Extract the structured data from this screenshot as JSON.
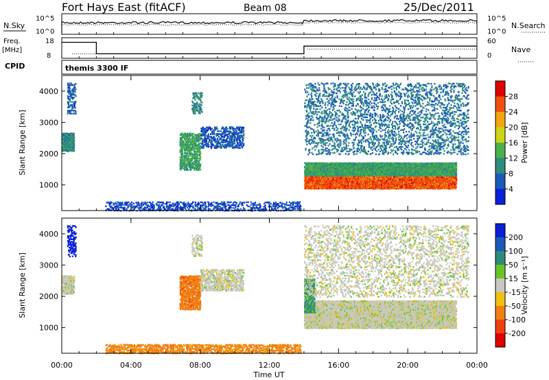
{
  "header": {
    "radar": "Fort Hays East (fitACF)",
    "beam": "Beam 08",
    "date": "25/Dec/2011"
  },
  "top_panels": {
    "nsky_label": "N.Sky",
    "nsky_ticks": [
      "10^5",
      "10^0"
    ],
    "nsearch_label": "N.Search",
    "nsearch_ticks": [
      "10^5",
      "10^0"
    ],
    "freq_label": "Freq.",
    "freq_unit": "[MHz]",
    "freq_ticks": [
      "18",
      "8"
    ],
    "nave_label": "Nave",
    "nave_ticks": [
      "60",
      "0"
    ],
    "cpid_label": "CPID",
    "cpid_value": "themis 3300 IF"
  },
  "chart_data": [
    {
      "type": "heatmap",
      "name": "Power",
      "ylabel": "Slant Range [km]",
      "yticks": [
        1000,
        2000,
        3000,
        4000
      ],
      "ylim": [
        180,
        4500
      ],
      "colorbar_label": "Power [dB]",
      "colorbar_ticks": [
        "4",
        "8",
        "12",
        "16",
        "20",
        "24",
        "28"
      ],
      "colorbar_colors": [
        "#0a1fd6",
        "#1a5ab8",
        "#2d8c7a",
        "#4bb04a",
        "#cbd418",
        "#f0a60c",
        "#f05010",
        "#e00000"
      ],
      "colorbar_range": [
        0,
        32
      ],
      "blobs": [
        {
          "x": [
            0.0,
            0.7
          ],
          "y": [
            2100,
            2700
          ],
          "power": 10,
          "density": 0.9
        },
        {
          "x": [
            0.3,
            0.8
          ],
          "y": [
            3300,
            4300
          ],
          "power": 6,
          "density": 0.4
        },
        {
          "x": [
            6.8,
            8.0
          ],
          "y": [
            1500,
            2700
          ],
          "power": 12,
          "density": 0.6
        },
        {
          "x": [
            8.0,
            10.5
          ],
          "y": [
            2200,
            2900
          ],
          "power": 6,
          "density": 0.45
        },
        {
          "x": [
            7.5,
            8.1
          ],
          "y": [
            3300,
            4000
          ],
          "power": 10,
          "density": 0.4
        },
        {
          "x": [
            14.0,
            22.8
          ],
          "y": [
            1300,
            1750
          ],
          "power": 12,
          "density": 0.95
        },
        {
          "x": [
            14.0,
            22.8
          ],
          "y": [
            900,
            1300
          ],
          "power": 26,
          "density": 0.95
        },
        {
          "x": [
            14.0,
            23.5
          ],
          "y": [
            2000,
            4300
          ],
          "power": 8,
          "density": 0.22
        },
        {
          "x": [
            2.5,
            13.8
          ],
          "y": [
            200,
            500
          ],
          "power": 5,
          "density": 0.35
        }
      ]
    },
    {
      "type": "heatmap",
      "name": "Velocity",
      "ylabel": "Slant Range [km]",
      "xlabel": "Time UT",
      "xticks": [
        "00:00",
        "04:00",
        "08:00",
        "12:00",
        "16:00",
        "20:00",
        "00:00"
      ],
      "xrange_hours": [
        0,
        24
      ],
      "yticks": [
        1000,
        2000,
        3000,
        4000
      ],
      "ylim": [
        180,
        4500
      ],
      "colorbar_label": "Velocity [m s⁻¹]",
      "colorbar_ticks": [
        "200",
        "100",
        "50",
        "15",
        "-15",
        "-50",
        "-100",
        "-200"
      ],
      "colorbar_colors": [
        "#0a1fd6",
        "#1a5ab8",
        "#2d8c7a",
        "#68c428",
        "#c8c8c0",
        "#f0c010",
        "#f08010",
        "#f04010",
        "#e00000"
      ],
      "blobs": [
        {
          "x": [
            0.0,
            0.7
          ],
          "y": [
            2100,
            2700
          ],
          "vel": 0,
          "density": 0.85
        },
        {
          "x": [
            0.3,
            0.8
          ],
          "y": [
            3300,
            4300
          ],
          "vel": 220,
          "density": 0.4
        },
        {
          "x": [
            6.8,
            8.0
          ],
          "y": [
            1600,
            2700
          ],
          "vel": -60,
          "density": 0.7
        },
        {
          "x": [
            8.0,
            10.5
          ],
          "y": [
            2200,
            2900
          ],
          "vel": 0,
          "density": 0.55
        },
        {
          "x": [
            7.5,
            8.1
          ],
          "y": [
            3300,
            4000
          ],
          "vel": 0,
          "density": 0.4
        },
        {
          "x": [
            14.0,
            22.8
          ],
          "y": [
            1000,
            1900
          ],
          "vel": 0,
          "density": 0.95
        },
        {
          "x": [
            14.0,
            14.6
          ],
          "y": [
            1500,
            2600
          ],
          "vel": 40,
          "density": 0.7
        },
        {
          "x": [
            14.0,
            23.5
          ],
          "y": [
            2000,
            4300
          ],
          "vel": 0,
          "density": 0.22
        },
        {
          "x": [
            2.5,
            13.8
          ],
          "y": [
            200,
            500
          ],
          "vel": -45,
          "density": 0.5
        }
      ]
    }
  ],
  "series_top": {
    "nsky_jump_hour": 14.0,
    "freq_steps": [
      {
        "x": [
          0,
          2.0
        ],
        "level": 0.8
      },
      {
        "x": [
          2.0,
          14.0
        ],
        "level": 0.2
      },
      {
        "x": [
          14.0,
          24
        ],
        "level": 0.6
      }
    ],
    "nave_level": 0.55
  }
}
